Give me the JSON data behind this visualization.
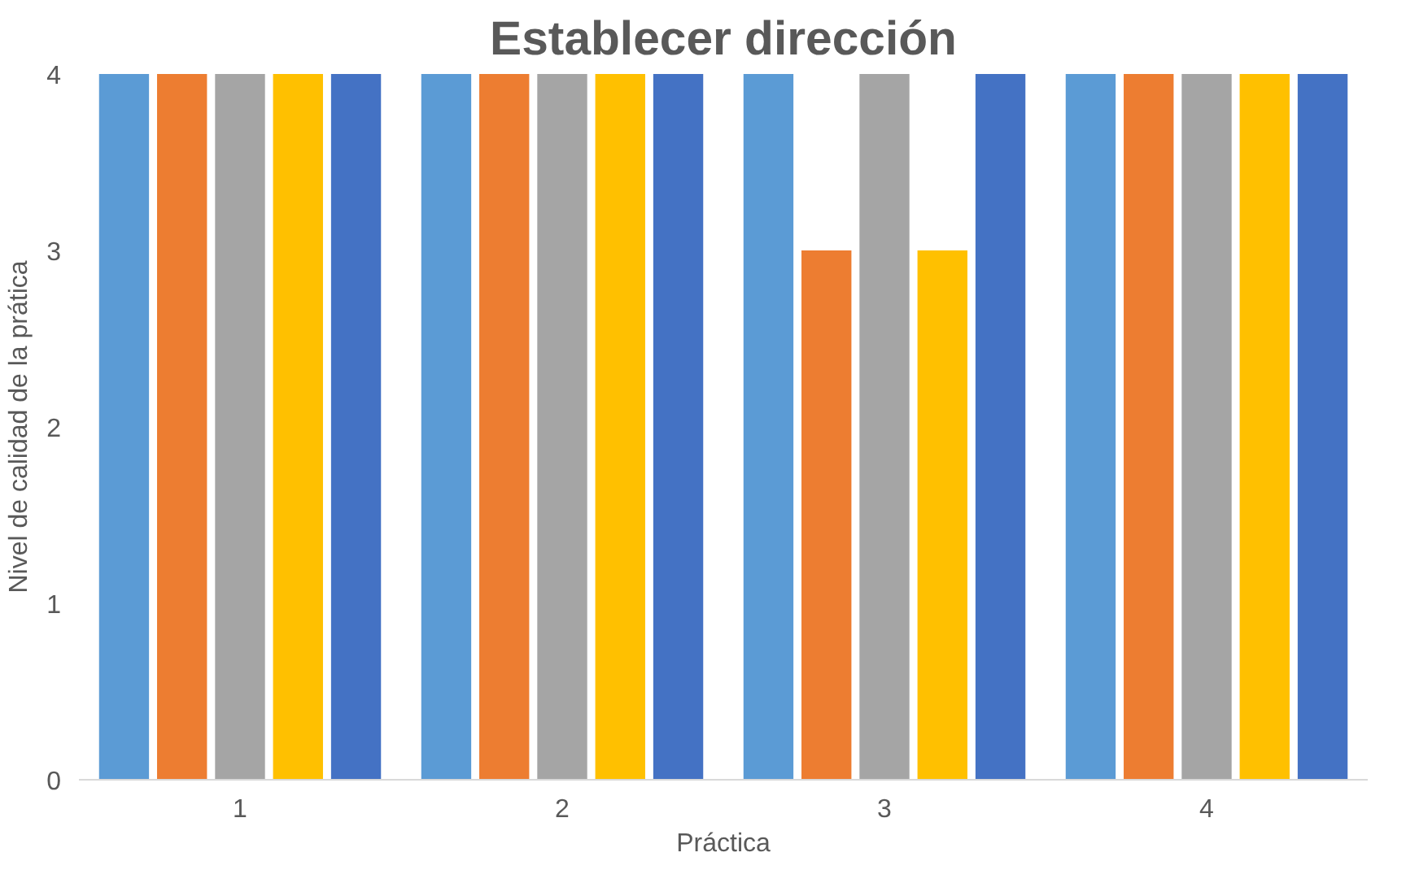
{
  "chart_data": {
    "type": "bar",
    "title": "Establecer dirección",
    "xlabel": "Práctica",
    "ylabel": "Nivel de calidad de la prática",
    "categories": [
      "1",
      "2",
      "3",
      "4"
    ],
    "series": [
      {
        "color": "#5b9bd5",
        "values": [
          4,
          4,
          4,
          4
        ]
      },
      {
        "color": "#ed7d31",
        "values": [
          4,
          4,
          3,
          4
        ]
      },
      {
        "color": "#a5a5a5",
        "values": [
          4,
          4,
          4,
          4
        ]
      },
      {
        "color": "#ffc000",
        "values": [
          4,
          4,
          3,
          4
        ]
      },
      {
        "color": "#4472c4",
        "values": [
          4,
          4,
          4,
          4
        ]
      }
    ],
    "ylim": [
      0,
      4
    ],
    "yticks": [
      0,
      1,
      2,
      3,
      4
    ],
    "grid": false
  }
}
